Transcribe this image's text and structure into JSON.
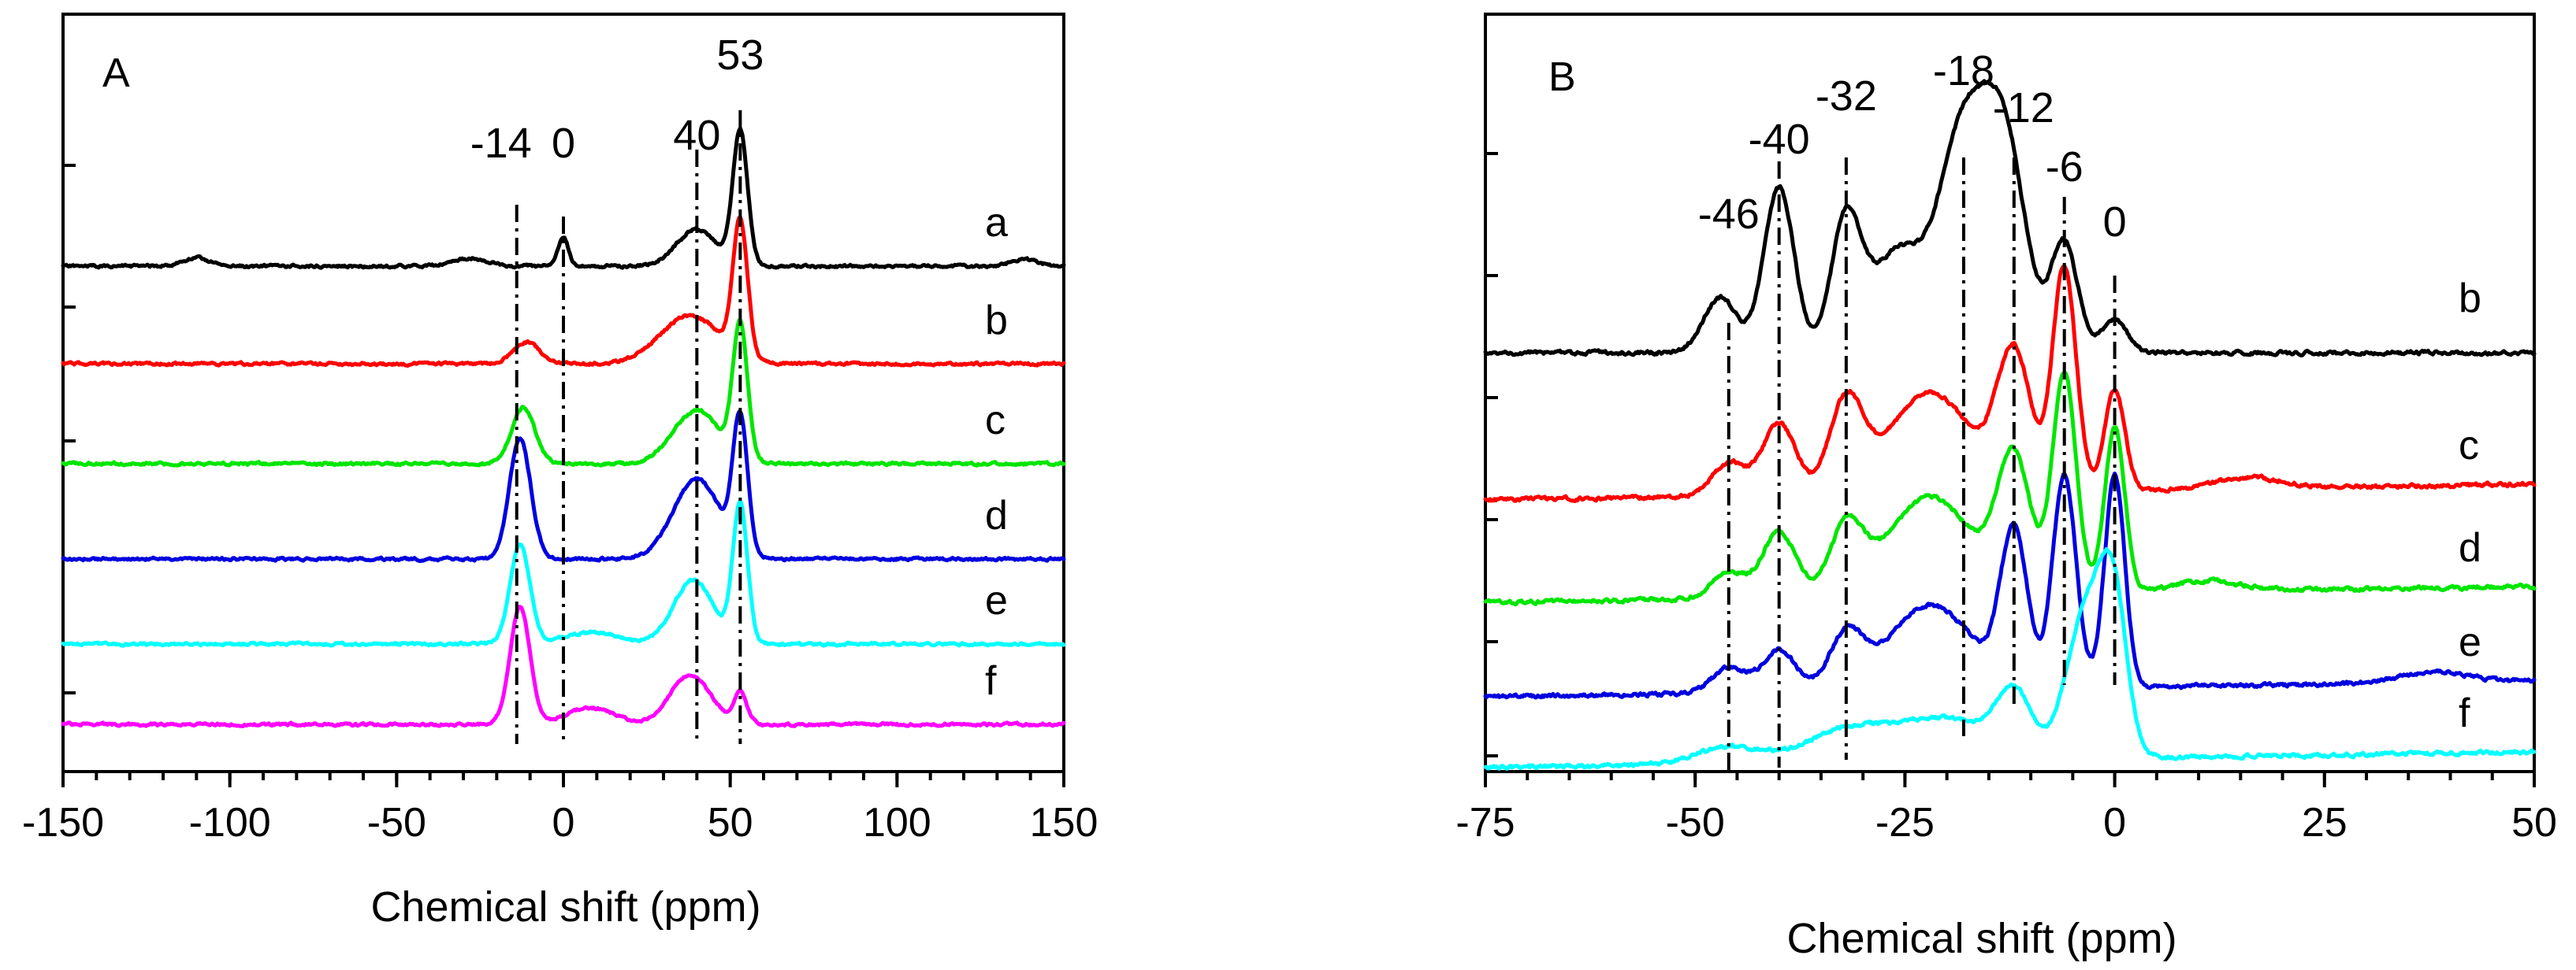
{
  "chart_data": [
    {
      "type": "line",
      "panel_label": "A",
      "xlabel": "Chemical shift (ppm)",
      "ylabel": "",
      "xlim": [
        -150,
        150
      ],
      "xticks": [
        "-150",
        "-100",
        "-50",
        "0",
        "50",
        "100",
        "150"
      ],
      "reference_lines": [
        {
          "x": -14,
          "label": "-14"
        },
        {
          "x": 0,
          "label": "0"
        },
        {
          "x": 40,
          "label": "40"
        },
        {
          "x": 53,
          "label": "53"
        }
      ],
      "series": [
        {
          "name": "a",
          "color": "#000000",
          "baseline": 0,
          "peaks": [
            [
              -110,
              0.06,
              4
            ],
            [
              -28,
              0.06,
              5
            ],
            [
              0,
              0.22,
              1.5
            ],
            [
              40,
              0.28,
              6
            ],
            [
              53,
              1.0,
              2.2
            ],
            [
              138,
              0.05,
              4
            ]
          ]
        },
        {
          "name": "b",
          "color": "#ff0000",
          "baseline": 0,
          "peaks": [
            [
              -11,
              0.16,
              4
            ],
            [
              38,
              0.36,
              9
            ],
            [
              53,
              1.0,
              2.2
            ]
          ]
        },
        {
          "name": "c",
          "color": "#00e600",
          "baseline": 0,
          "peaks": [
            [
              -12,
              0.42,
              3.5
            ],
            [
              40,
              0.4,
              7
            ],
            [
              53,
              1.0,
              2.2
            ]
          ]
        },
        {
          "name": "d",
          "color": "#0000e0",
          "baseline": 0,
          "peaks": [
            [
              -13,
              0.9,
              3.2
            ],
            [
              40,
              0.6,
              7
            ],
            [
              53,
              1.0,
              2.2
            ]
          ]
        },
        {
          "name": "e",
          "color": "#00ffff",
          "baseline": 0,
          "peaks": [
            [
              -13,
              1.0,
              3.0
            ],
            [
              8,
              0.12,
              8
            ],
            [
              39,
              0.65,
              6
            ],
            [
              53,
              1.4,
              2.2
            ]
          ]
        },
        {
          "name": "f",
          "color": "#ff00ff",
          "baseline": 0,
          "peaks": [
            [
              -13,
              1.0,
              3.0
            ],
            [
              8,
              0.14,
              7
            ],
            [
              38,
              0.42,
              6
            ],
            [
              53,
              0.26,
              2.0
            ]
          ]
        }
      ]
    },
    {
      "type": "line",
      "panel_label": "B",
      "xlabel": "Chemical shift (ppm)",
      "ylabel": "",
      "xlim": [
        -75,
        50
      ],
      "xticks": [
        "-75",
        "-50",
        "-25",
        "0",
        "25",
        "50"
      ],
      "reference_lines": [
        {
          "x": -46,
          "label": "-46"
        },
        {
          "x": -40,
          "label": "-40"
        },
        {
          "x": -32,
          "label": "-32"
        },
        {
          "x": -18,
          "label": "-18"
        },
        {
          "x": -12,
          "label": "-12"
        },
        {
          "x": -6,
          "label": "-6"
        },
        {
          "x": 0,
          "label": "0"
        }
      ],
      "series": [
        {
          "name": "b",
          "color": "#000000",
          "peaks": [
            [
              -47,
              0.25,
              2
            ],
            [
              -40,
              0.75,
              1.8
            ],
            [
              -32,
              0.6,
              1.8
            ],
            [
              -26,
              0.45,
              3
            ],
            [
              -18,
              1.0,
              3
            ],
            [
              -13,
              0.85,
              2.5
            ],
            [
              -6,
              0.5,
              1.6
            ],
            [
              0,
              0.15,
              1.5
            ]
          ]
        },
        {
          "name": "c",
          "color": "#ff0000",
          "peaks": [
            [
              -46,
              0.15,
              2
            ],
            [
              -40,
              0.32,
              2
            ],
            [
              -32,
              0.4,
              2
            ],
            [
              -22,
              0.45,
              5
            ],
            [
              -12,
              0.6,
              2
            ],
            [
              -6,
              1.0,
              1.4
            ],
            [
              0,
              0.45,
              1.2
            ],
            [
              16,
              0.05,
              4
            ]
          ]
        },
        {
          "name": "d",
          "color": "#00e600",
          "peaks": [
            [
              -46,
              0.12,
              2
            ],
            [
              -40,
              0.3,
              2
            ],
            [
              -32,
              0.3,
              2
            ],
            [
              -22,
              0.45,
              5
            ],
            [
              -12,
              0.6,
              2
            ],
            [
              -6,
              1.0,
              1.4
            ],
            [
              0,
              0.75,
              1.2
            ],
            [
              11,
              0.05,
              4
            ]
          ]
        },
        {
          "name": "e",
          "color": "#0000e0",
          "peaks": [
            [
              -46,
              0.12,
              2
            ],
            [
              -40,
              0.2,
              2
            ],
            [
              -32,
              0.25,
              2
            ],
            [
              -22,
              0.4,
              5
            ],
            [
              -12,
              0.72,
              1.6
            ],
            [
              -6,
              1.0,
              1.4
            ],
            [
              0,
              1.0,
              1.2
            ],
            [
              38,
              0.05,
              4
            ]
          ]
        },
        {
          "name": "f",
          "color": "#00ffff",
          "peaks": [
            [
              -46,
              0.1,
              4
            ],
            [
              -32,
              0.18,
              5
            ],
            [
              -20,
              0.25,
              6
            ],
            [
              -12,
              0.35,
              2
            ],
            [
              -3,
              0.95,
              2.5
            ],
            [
              0,
              0.7,
              1.5
            ]
          ]
        }
      ]
    }
  ]
}
